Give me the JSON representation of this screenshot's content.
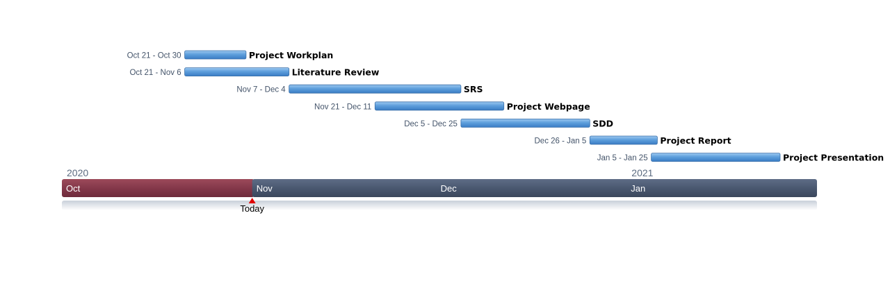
{
  "chart_data": {
    "type": "gantt",
    "tasks": [
      {
        "name": "Project Workplan",
        "start": "2020-10-21",
        "end": "2020-10-30",
        "range_label": "Oct 21 - Oct 30"
      },
      {
        "name": "Literature Review",
        "start": "2020-10-21",
        "end": "2020-11-06",
        "range_label": "Oct 21 - Nov 6"
      },
      {
        "name": "SRS",
        "start": "2020-11-07",
        "end": "2020-12-04",
        "range_label": "Nov 7 - Dec 4"
      },
      {
        "name": "Project Webpage",
        "start": "2020-11-21",
        "end": "2020-12-11",
        "range_label": "Nov 21 - Dec 11"
      },
      {
        "name": "SDD",
        "start": "2020-12-05",
        "end": "2020-12-25",
        "range_label": "Dec 5 - Dec 25"
      },
      {
        "name": "Project Report",
        "start": "2020-12-26",
        "end": "2021-01-05",
        "range_label": "Dec 26 - Jan 5"
      },
      {
        "name": "Project Presentation",
        "start": "2021-01-05",
        "end": "2021-01-25",
        "range_label": "Jan 5 - Jan 25"
      }
    ],
    "timeline": {
      "start": "2020-10-01",
      "end": "2021-01-31",
      "years": [
        {
          "label": "2020",
          "date": "2020-10-01"
        },
        {
          "label": "2021",
          "date": "2021-01-01"
        }
      ],
      "months": [
        {
          "label": "Oct",
          "date": "2020-10-01"
        },
        {
          "label": "Nov",
          "date": "2020-11-01"
        },
        {
          "label": "Dec",
          "date": "2020-12-01"
        },
        {
          "label": "Jan",
          "date": "2021-01-01"
        }
      ],
      "today": {
        "label": "Today",
        "date": "2020-11-01"
      }
    },
    "colors": {
      "task_bar": "#5b9bd5",
      "past_segment": "#8b3a4a",
      "future_segment": "#4a5870",
      "today_marker": "#e00000"
    }
  }
}
